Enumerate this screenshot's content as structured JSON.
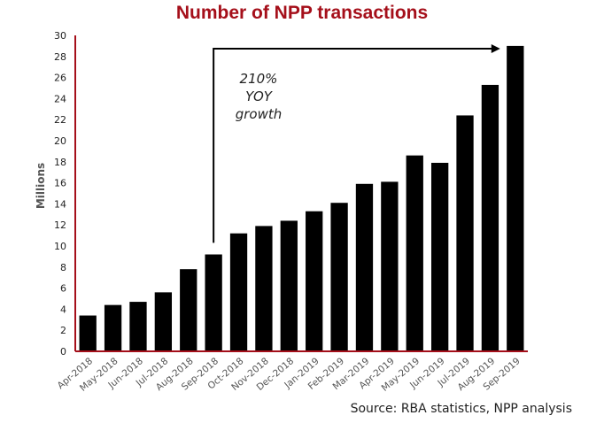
{
  "chart_data": {
    "type": "bar",
    "title": "Number of NPP transactions",
    "ylabel": "Millions",
    "xlabel": "",
    "ylim": [
      0,
      30
    ],
    "yticks": [
      0,
      2,
      4,
      6,
      8,
      10,
      12,
      14,
      16,
      18,
      20,
      22,
      24,
      26,
      28,
      30
    ],
    "categories": [
      "Apr-2018",
      "May-2018",
      "Jun-2018",
      "Jul-2018",
      "Aug-2018",
      "Sep-2018",
      "Oct-2018",
      "Nov-2018",
      "Dec-2018",
      "Jan-2019",
      "Feb-2019",
      "Mar-2019",
      "Apr-2019",
      "May-2019",
      "Jun-2019",
      "Jul-2019",
      "Aug-2019",
      "Sep-2019"
    ],
    "values": [
      3.4,
      4.4,
      4.7,
      5.6,
      7.8,
      9.2,
      11.2,
      11.9,
      12.4,
      13.3,
      14.1,
      15.9,
      16.1,
      18.6,
      17.9,
      22.4,
      25.3,
      29.0
    ],
    "annotation": [
      "210%",
      "YOY",
      "growth"
    ],
    "bar_color": "#000000",
    "axis_color": "#a50f1a",
    "title_color": "#a50f1a",
    "grid": false
  },
  "source": "Source: RBA statistics, NPP analysis"
}
